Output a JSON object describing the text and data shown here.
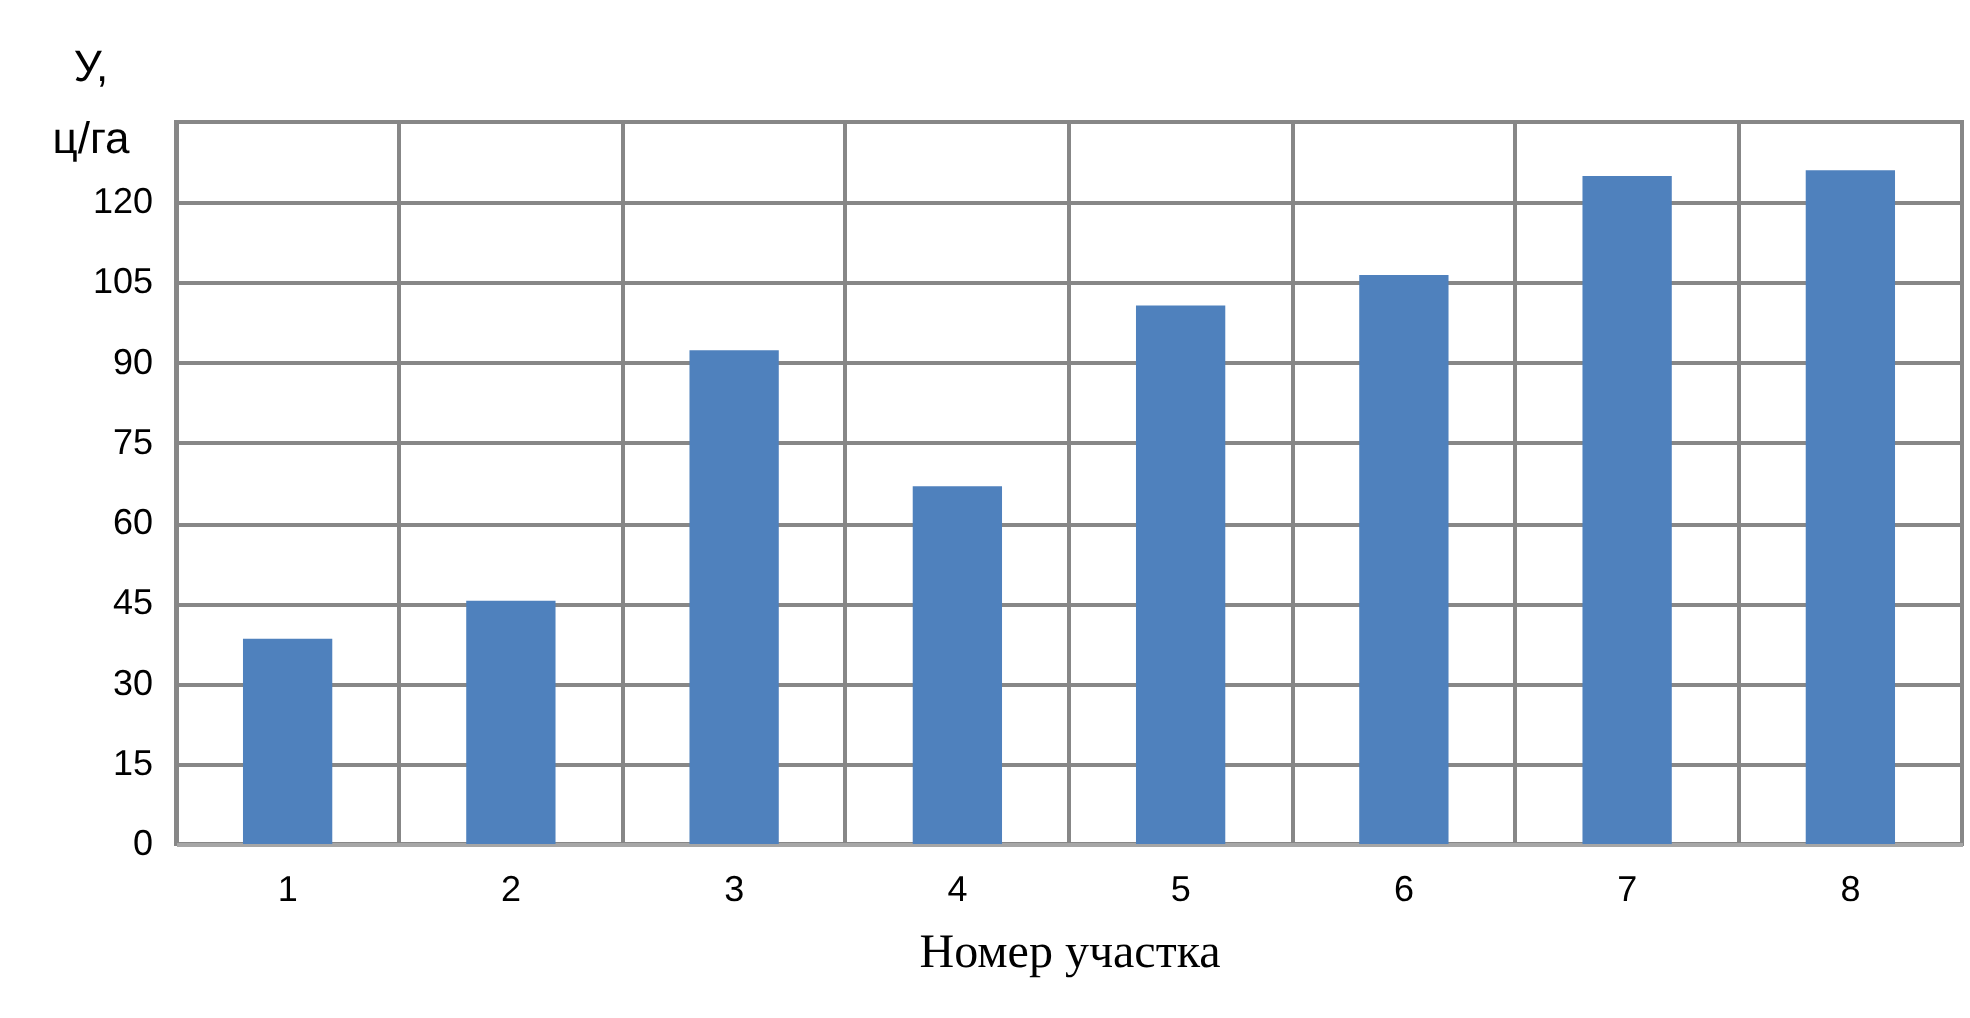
{
  "chart_data": {
    "type": "bar",
    "xlabel": "Номер участка",
    "ylabel": "У,\nц/га",
    "categories": [
      "1",
      "2",
      "3",
      "4",
      "5",
      "6",
      "7",
      "8"
    ],
    "values": [
      38.4,
      45.5,
      92.3,
      66.9,
      100.7,
      106.4,
      124.9,
      126.0
    ],
    "color": "#4f81bd",
    "ylim": [
      0,
      135
    ],
    "yticks": [
      0,
      15,
      30,
      45,
      60,
      75,
      90,
      105,
      120
    ],
    "grid": true
  }
}
